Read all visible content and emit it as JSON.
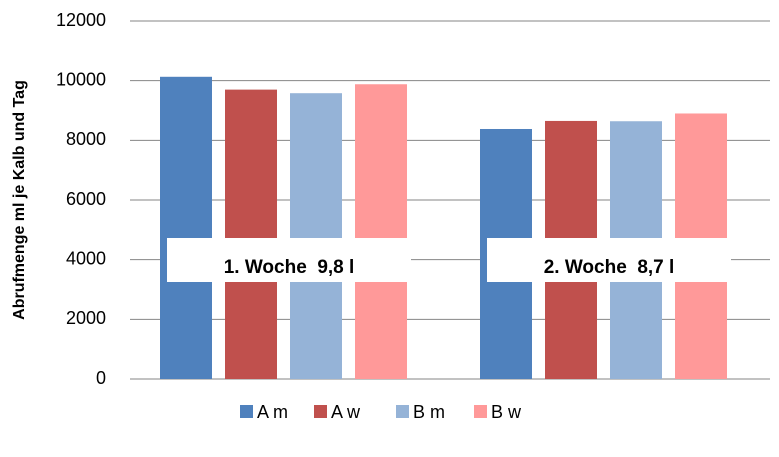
{
  "chart_data": {
    "type": "bar",
    "y_label": "Abrufmenge ml je Kalb und Tag",
    "categories": [
      null,
      null
    ],
    "annotations": [
      "1. Woche  9,8 l",
      "2. Woche  8,7 l"
    ],
    "series": [
      {
        "name": "A m",
        "color": "#4f81bd",
        "values": [
          10130,
          8380
        ]
      },
      {
        "name": "A w",
        "color": "#c0504d",
        "values": [
          9700,
          8650
        ]
      },
      {
        "name": "B m",
        "color": "#95b3d7",
        "values": [
          9580,
          8640
        ]
      },
      {
        "name": "B w",
        "color": "#ff9999",
        "values": [
          9880,
          8900
        ]
      }
    ],
    "ylim": [
      0,
      12000
    ],
    "yticks": [
      0,
      2000,
      4000,
      6000,
      8000,
      10000,
      12000
    ],
    "grid": true,
    "legend": "bottom"
  }
}
